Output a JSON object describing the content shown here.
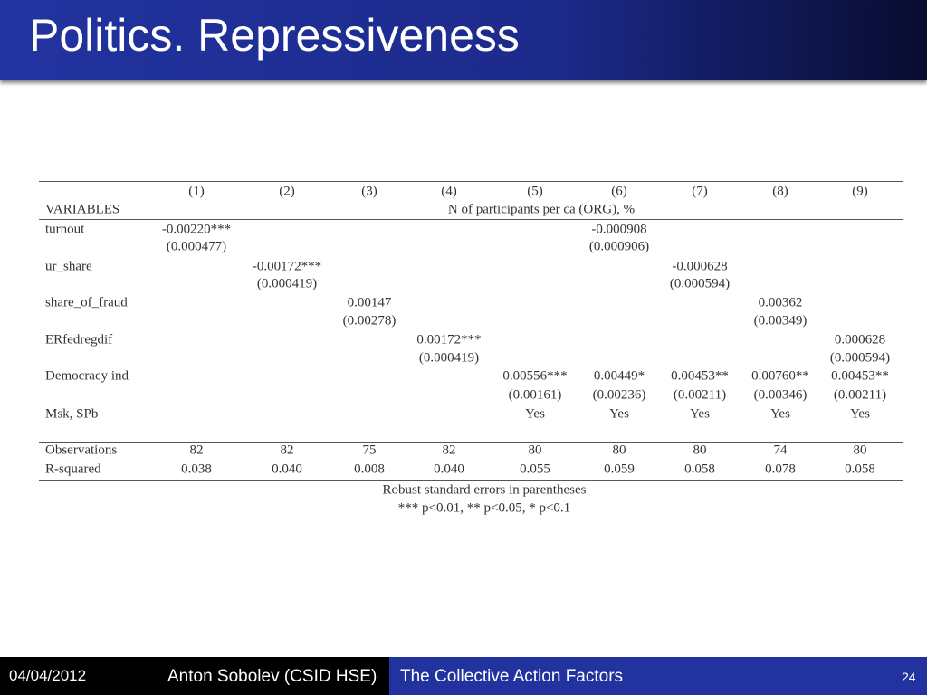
{
  "header": {
    "title": "Politics. Repressiveness"
  },
  "table": {
    "columns": [
      "(1)",
      "(2)",
      "(3)",
      "(4)",
      "(5)",
      "(6)",
      "(7)",
      "(8)",
      "(9)"
    ],
    "variables_label": "VARIABLES",
    "dependent": "N of participants per ca (ORG), %",
    "rows": [
      {
        "label": "turnout",
        "coef": [
          "-0.00220***",
          null,
          null,
          null,
          null,
          "-0.000908",
          null,
          null,
          null
        ],
        "se": [
          "(0.000477)",
          null,
          null,
          null,
          null,
          "(0.000906)",
          null,
          null,
          null
        ]
      },
      {
        "label": "ur_share",
        "coef": [
          null,
          "-0.00172***",
          null,
          null,
          null,
          null,
          "-0.000628",
          null,
          null
        ],
        "se": [
          null,
          "(0.000419)",
          null,
          null,
          null,
          null,
          "(0.000594)",
          null,
          null
        ]
      },
      {
        "label": "share_of_fraud",
        "coef": [
          null,
          null,
          "0.00147",
          null,
          null,
          null,
          null,
          "0.00362",
          null
        ],
        "se": [
          null,
          null,
          "(0.00278)",
          null,
          null,
          null,
          null,
          "(0.00349)",
          null
        ]
      },
      {
        "label": "ERfedregdif",
        "coef": [
          null,
          null,
          null,
          "0.00172***",
          null,
          null,
          null,
          null,
          "0.000628"
        ],
        "se": [
          null,
          null,
          null,
          "(0.000419)",
          null,
          null,
          null,
          null,
          "(0.000594)"
        ]
      },
      {
        "label": "Democracy ind",
        "coef": [
          null,
          null,
          null,
          null,
          "0.00556***",
          "0.00449*",
          "0.00453**",
          "0.00760**",
          "0.00453**"
        ],
        "se": [
          null,
          null,
          null,
          null,
          "(0.00161)",
          "(0.00236)",
          "(0.00211)",
          "(0.00346)",
          "(0.00211)"
        ]
      },
      {
        "label": "Msk, SPb",
        "coef": [
          null,
          null,
          null,
          null,
          "Yes",
          "Yes",
          "Yes",
          "Yes",
          "Yes"
        ]
      }
    ],
    "stats": [
      {
        "label": "Observations",
        "values": [
          82,
          82,
          75,
          82,
          80,
          80,
          80,
          74,
          80
        ]
      },
      {
        "label": "R-squared",
        "values": [
          "0.038",
          "0.040",
          "0.008",
          "0.040",
          "0.055",
          "0.059",
          "0.058",
          "0.078",
          "0.058"
        ]
      }
    ],
    "notes": [
      "Robust standard errors in parentheses",
      "*** p<0.01, ** p<0.05, * p<0.1"
    ]
  },
  "footer": {
    "date": "04/04/2012",
    "author": "Anton Sobolev (CSID HSE)",
    "title": "The Collective Action Factors",
    "page": "24"
  }
}
